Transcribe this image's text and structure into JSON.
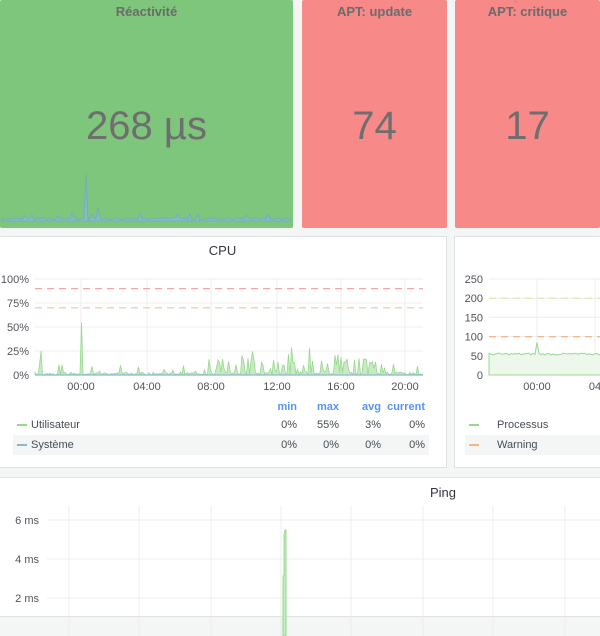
{
  "stats": [
    {
      "title": "Réactivité",
      "value": "268 µs",
      "bg": "#7ec67b"
    },
    {
      "title": "APT: update",
      "value": "74",
      "bg": "#f78989"
    },
    {
      "title": "APT: critique",
      "value": "17",
      "bg": "#f78989"
    }
  ],
  "cpu": {
    "title": "CPU",
    "y_ticks": [
      "100%",
      "75%",
      "50%",
      "25%",
      "0%"
    ],
    "x_ticks": [
      "00:00",
      "04:00",
      "08:00",
      "12:00",
      "16:00",
      "20:00"
    ],
    "legend_headers": [
      "min",
      "max",
      "avg",
      "current"
    ],
    "series": [
      {
        "name": "Utilisateur",
        "color": "#96d98d",
        "min": "0%",
        "max": "55%",
        "avg": "3%",
        "current": "0%"
      },
      {
        "name": "Système",
        "color": "#8ab8d4",
        "min": "0%",
        "max": "0%",
        "avg": "0%",
        "current": "0%"
      }
    ],
    "thresholds": [
      {
        "value": 90,
        "color": "#f2a7a7"
      },
      {
        "value": 70,
        "color": "#f5c4a0"
      }
    ]
  },
  "processes": {
    "y_ticks": [
      "250",
      "200",
      "150",
      "100",
      "50",
      "0"
    ],
    "x_ticks": [
      "00:00",
      "04"
    ],
    "series": [
      {
        "name": "Processus",
        "color": "#96d98d"
      },
      {
        "name": "Warning",
        "color": "#f5b48a"
      }
    ]
  },
  "ping": {
    "title": "Ping",
    "y_ticks": [
      "6 ms",
      "4 ms",
      "2 ms"
    ]
  },
  "colors": {
    "accent": "#5794f2",
    "grid": "#e9e9e9"
  }
}
